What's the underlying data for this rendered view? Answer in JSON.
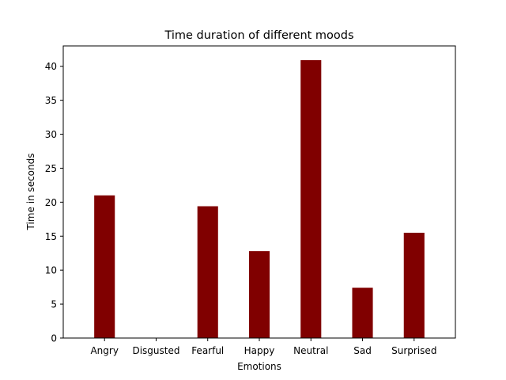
{
  "chart_data": {
    "type": "bar",
    "title": "Time duration of different moods",
    "xlabel": "Emotions",
    "ylabel": "Time in seconds",
    "categories": [
      "Angry",
      "Disgusted",
      "Fearful",
      "Happy",
      "Neutral",
      "Sad",
      "Surprised"
    ],
    "values": [
      21.0,
      0,
      19.4,
      12.8,
      40.9,
      7.4,
      15.5
    ],
    "ylim": [
      0,
      43
    ],
    "yticks": [
      0,
      5,
      10,
      15,
      20,
      25,
      30,
      35,
      40
    ],
    "grid": false,
    "bar_color": "#800000"
  }
}
